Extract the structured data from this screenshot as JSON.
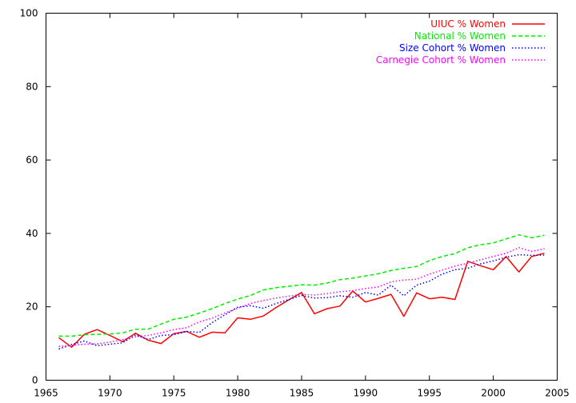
{
  "chart_data": {
    "type": "line",
    "title": "",
    "xlabel": "",
    "ylabel": "",
    "xlim": [
      1965,
      2005
    ],
    "ylim": [
      0,
      100
    ],
    "grid": false,
    "legend_position": "top-right",
    "x_ticks": [
      "1965",
      "1970",
      "1975",
      "1980",
      "1985",
      "1990",
      "1995",
      "2000",
      "2005"
    ],
    "y_ticks": [
      "0",
      "20",
      "40",
      "60",
      "80",
      "100"
    ],
    "x": [
      1966,
      1967,
      1968,
      1969,
      1970,
      1971,
      1972,
      1973,
      1974,
      1975,
      1976,
      1977,
      1978,
      1979,
      1980,
      1981,
      1982,
      1983,
      1984,
      1985,
      1986,
      1987,
      1988,
      1989,
      1990,
      1991,
      1992,
      1993,
      1994,
      1995,
      1996,
      1997,
      1998,
      1999,
      2000,
      2001,
      2002,
      2003,
      2004
    ],
    "series": [
      {
        "name": "UIUC % Women",
        "color": "#ff0000",
        "dash": "solid",
        "values": [
          11.6,
          9.0,
          12.5,
          13.8,
          12.2,
          10.5,
          12.8,
          10.9,
          10.0,
          12.7,
          13.3,
          11.7,
          13.1,
          12.9,
          17.0,
          16.6,
          17.5,
          19.8,
          21.9,
          23.9,
          18.1,
          19.5,
          20.2,
          24.3,
          21.3,
          22.3,
          23.4,
          17.4,
          23.8,
          22.2,
          22.6,
          22.0,
          32.4,
          31.2,
          30.1,
          33.7,
          29.5,
          33.7,
          34.6
        ]
      },
      {
        "name": "National % Women",
        "color": "#00ee00",
        "dash": "dashed",
        "values": [
          12.0,
          12.0,
          12.4,
          12.5,
          12.6,
          12.9,
          13.9,
          13.9,
          15.3,
          16.6,
          17.2,
          18.3,
          19.5,
          20.9,
          22.1,
          23.1,
          24.6,
          25.2,
          25.6,
          26.0,
          25.9,
          26.5,
          27.4,
          27.8,
          28.4,
          29.0,
          29.9,
          30.5,
          31.0,
          32.6,
          33.7,
          34.5,
          36.1,
          36.9,
          37.4,
          38.5,
          39.6,
          38.8,
          39.5
        ]
      },
      {
        "name": "Size Cohort % Women",
        "color": "#0000ff",
        "dash": "dotted",
        "values": [
          8.5,
          9.7,
          10.7,
          9.4,
          9.8,
          10.2,
          12.3,
          11.1,
          12.2,
          12.4,
          13.3,
          13.0,
          15.7,
          17.8,
          19.9,
          20.3,
          19.6,
          20.9,
          22.0,
          23.1,
          22.4,
          22.5,
          23.0,
          22.6,
          23.9,
          23.2,
          25.9,
          23.0,
          25.9,
          27.0,
          28.9,
          30.1,
          30.5,
          31.7,
          32.5,
          33.5,
          34.2,
          34.0,
          34.1
        ]
      },
      {
        "name": "Carnegie Cohort % Women",
        "color": "#ff00ff",
        "dash": "dotted",
        "values": [
          9.2,
          9.5,
          9.8,
          9.9,
          10.4,
          11.1,
          11.8,
          12.2,
          12.9,
          13.8,
          14.3,
          15.9,
          16.9,
          18.3,
          19.6,
          20.9,
          21.7,
          22.4,
          22.9,
          23.4,
          23.2,
          23.6,
          24.1,
          24.4,
          25.0,
          25.4,
          26.8,
          27.3,
          27.5,
          28.9,
          30.0,
          31.1,
          31.9,
          32.8,
          33.7,
          34.6,
          36.1,
          35.1,
          35.8
        ]
      }
    ]
  }
}
